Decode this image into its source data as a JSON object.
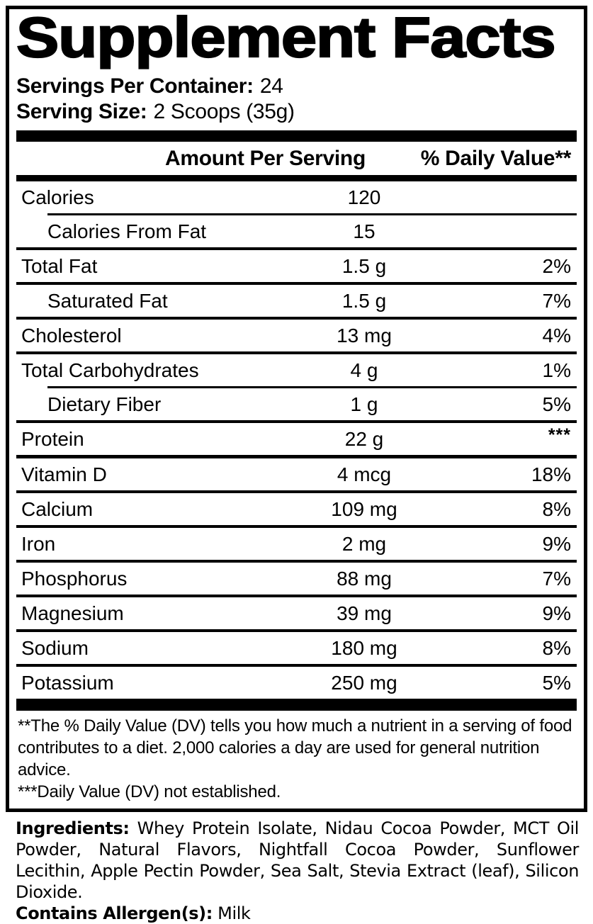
{
  "colors": {
    "ink": "#000000",
    "paper": "#ffffff"
  },
  "label": {
    "title": "Supplement Facts",
    "servings_per_container": {
      "label": "Servings Per Container:",
      "value": "24"
    },
    "serving_size": {
      "label": "Serving Size:",
      "value": "2 Scoops (35g)"
    },
    "columns": {
      "amount": "Amount Per Serving",
      "daily_value": "% Daily Value**"
    },
    "rows": [
      {
        "name": "Calories",
        "amount": "120",
        "dv": "",
        "indent": false,
        "sep": null,
        "dv_top": false
      },
      {
        "name": "Calories From Fat",
        "amount": "15",
        "dv": "",
        "indent": true,
        "sep": "indent",
        "dv_top": false
      },
      {
        "name": "Total Fat",
        "amount": "1.5 g",
        "dv": "2%",
        "indent": false,
        "sep": "normal",
        "dv_top": false
      },
      {
        "name": "Saturated Fat",
        "amount": "1.5 g",
        "dv": "7%",
        "indent": true,
        "sep": "normal",
        "dv_top": false
      },
      {
        "name": "Cholesterol",
        "amount": "13 mg",
        "dv": "4%",
        "indent": false,
        "sep": "normal",
        "dv_top": false
      },
      {
        "name": "Total Carbohydrates",
        "amount": "4 g",
        "dv": "1%",
        "indent": false,
        "sep": "normal",
        "dv_top": false
      },
      {
        "name": "Dietary Fiber",
        "amount": "1 g",
        "dv": "5%",
        "indent": true,
        "sep": "indent",
        "dv_top": false
      },
      {
        "name": "Protein",
        "amount": "22 g",
        "dv": "***",
        "indent": false,
        "sep": "normal",
        "dv_top": true
      },
      {
        "name": "Vitamin D",
        "amount": "4 mcg",
        "dv": "18%",
        "indent": false,
        "sep": "thick",
        "dv_top": false
      },
      {
        "name": "Calcium",
        "amount": "109 mg",
        "dv": "8%",
        "indent": false,
        "sep": "normal",
        "dv_top": false
      },
      {
        "name": "Iron",
        "amount": "2 mg",
        "dv": "9%",
        "indent": false,
        "sep": "normal",
        "dv_top": false
      },
      {
        "name": "Phosphorus",
        "amount": "88 mg",
        "dv": "7%",
        "indent": false,
        "sep": "normal",
        "dv_top": false
      },
      {
        "name": "Magnesium",
        "amount": "39 mg",
        "dv": "9%",
        "indent": false,
        "sep": "normal",
        "dv_top": false
      },
      {
        "name": "Sodium",
        "amount": "180 mg",
        "dv": "8%",
        "indent": false,
        "sep": "normal",
        "dv_top": false
      },
      {
        "name": "Potassium",
        "amount": "250 mg",
        "dv": "5%",
        "indent": false,
        "sep": "normal",
        "dv_top": false
      }
    ],
    "footnotes": [
      "**The % Daily Value (DV) tells you how much a nutrient in a serving of food contributes to a diet. 2,000 calories a day are used for general nutrition advice.",
      "***Daily Value (DV) not established."
    ]
  },
  "ingredients": {
    "label": "Ingredients:",
    "text": "Whey Protein Isolate, Nidau Cocoa Powder, MCT Oil Powder, Natural Flavors, Nightfall Cocoa Powder, Sunflower Lecithin, Apple Pectin Powder, Sea Salt, Stevia Extract (leaf), Silicon Dioxide."
  },
  "allergen": {
    "label": "Contains Allergen(s):",
    "value": "Milk"
  }
}
